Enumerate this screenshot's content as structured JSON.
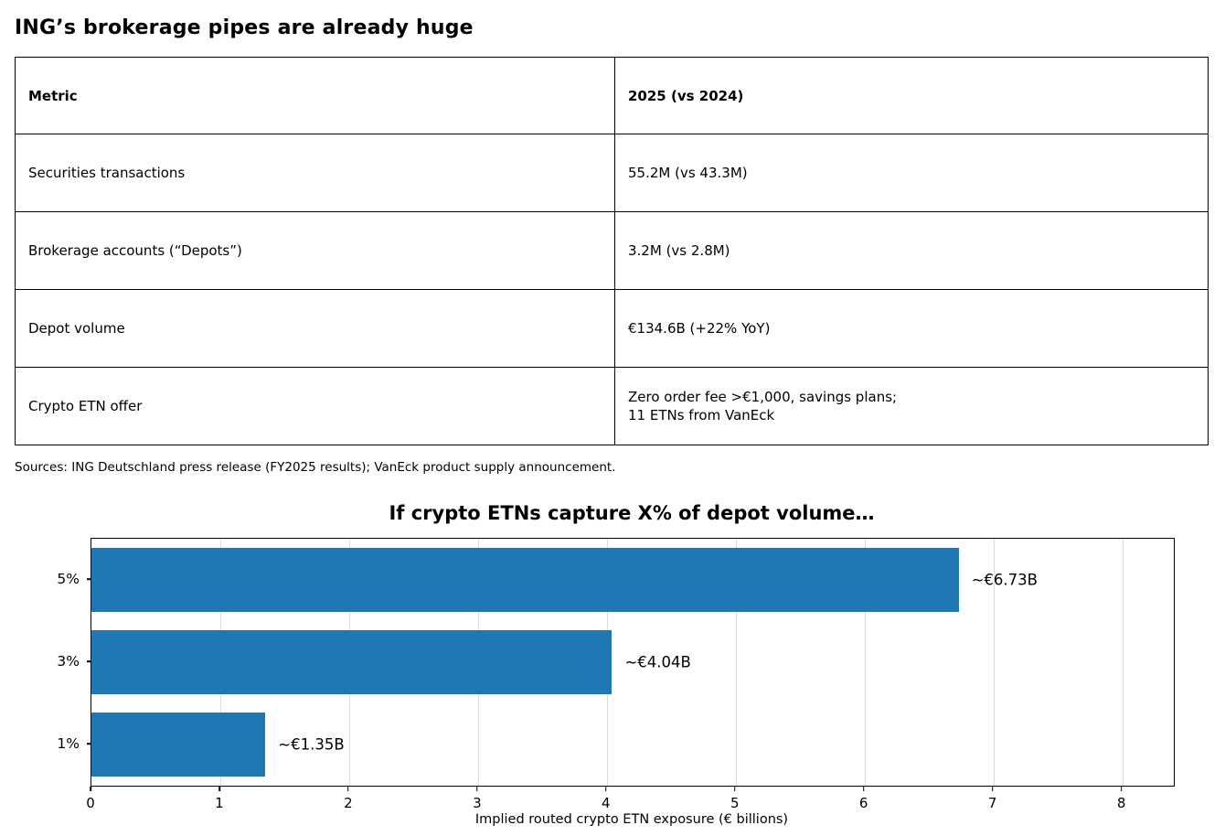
{
  "page": {
    "title": "ING’s brokerage pipes are already huge",
    "sources": "Sources: ING Deutschland press release (FY2025 results); VanEck product supply announcement."
  },
  "table": {
    "headers": [
      "Metric",
      "2025 (vs 2024)"
    ],
    "rows": [
      {
        "metric": "Securities transactions",
        "value": "55.2M (vs 43.3M)"
      },
      {
        "metric": "Brokerage accounts (“Depots”)",
        "value": "3.2M (vs 2.8M)"
      },
      {
        "metric": "Depot volume",
        "value": "€134.6B (+22% YoY)"
      },
      {
        "metric": "Crypto ETN offer",
        "value": "Zero order fee >€1,000, savings plans;\n11 ETNs from VanEck"
      }
    ]
  },
  "chart_data": {
    "type": "bar",
    "orientation": "horizontal",
    "title": "If crypto ETNs capture X% of depot volume…",
    "categories": [
      "5%",
      "3%",
      "1%"
    ],
    "values": [
      6.73,
      4.04,
      1.35
    ],
    "bar_labels": [
      "~€6.73B",
      "~€4.04B",
      "~€1.35B"
    ],
    "xlabel": "Implied routed crypto ETN exposure (€ billions)",
    "ylabel": "",
    "xlim": [
      0,
      8.4
    ],
    "xticks": [
      0,
      1,
      2,
      3,
      4,
      5,
      6,
      7,
      8
    ],
    "grid": "vertical-gridlines",
    "legend": "none",
    "bar_color": "#1f77b4",
    "grid_color": "#dcdcdc",
    "axis_color": "#000000"
  }
}
